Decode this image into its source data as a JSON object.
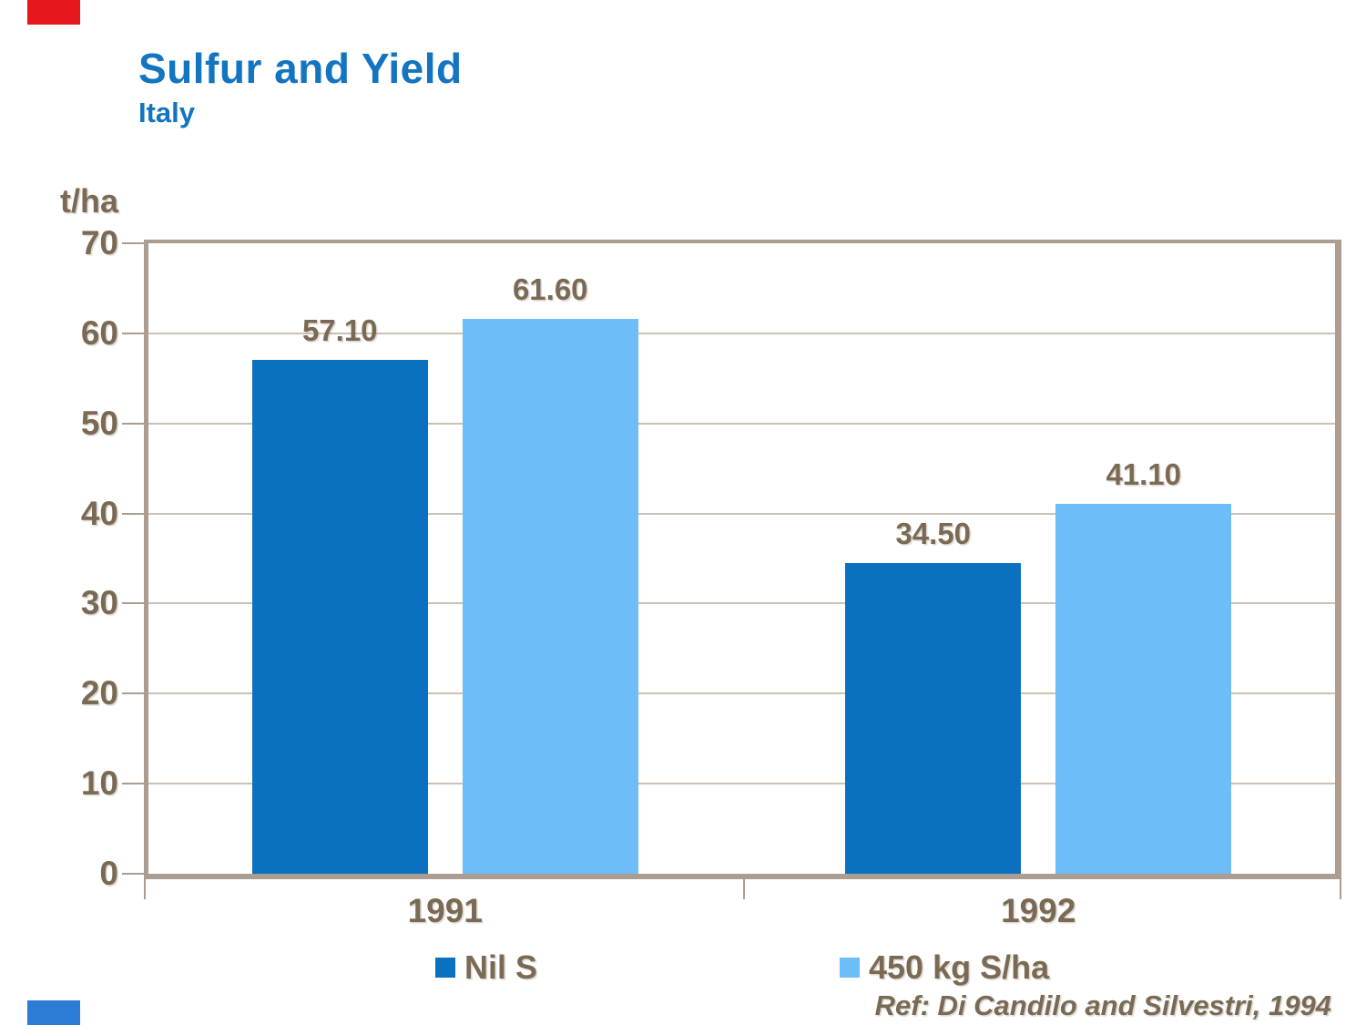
{
  "slide": {
    "title": "Sulfur and Yield",
    "subtitle": "Italy",
    "unit_label": "t/ha",
    "reference": "Ref: Di Candilo and Silvestri, 1994"
  },
  "colors": {
    "title_blue": "#1374c0",
    "text_brown": "#7a6a54",
    "frame_tan": "#ab9d90",
    "gridline_tan": "#ccc1b3",
    "series_nil_s": "#0a71c1",
    "series_450": "#6cbdf8",
    "corner_red": "#e6161d",
    "corner_blue": "#2c7cd5",
    "background": "#ffffff"
  },
  "chart_data": {
    "type": "bar",
    "title": "Sulfur and Yield",
    "subtitle": "Italy",
    "ylabel": "t/ha",
    "xlabel": "",
    "ylim": [
      0,
      70
    ],
    "ytick_step": 10,
    "ytick_labels": [
      "0",
      "10",
      "20",
      "30",
      "40",
      "50",
      "60",
      "70"
    ],
    "grid": true,
    "legend_position": "bottom",
    "categories": [
      "1991",
      "1992"
    ],
    "series": [
      {
        "name": "Nil S",
        "color_key": "series_nil_s",
        "values": [
          57.1,
          34.5
        ],
        "value_labels": [
          "57.10",
          "34.50"
        ]
      },
      {
        "name": "450 kg S/ha",
        "color_key": "series_450",
        "values": [
          61.6,
          41.1
        ],
        "value_labels": [
          "61.60",
          "41.10"
        ]
      }
    ]
  }
}
